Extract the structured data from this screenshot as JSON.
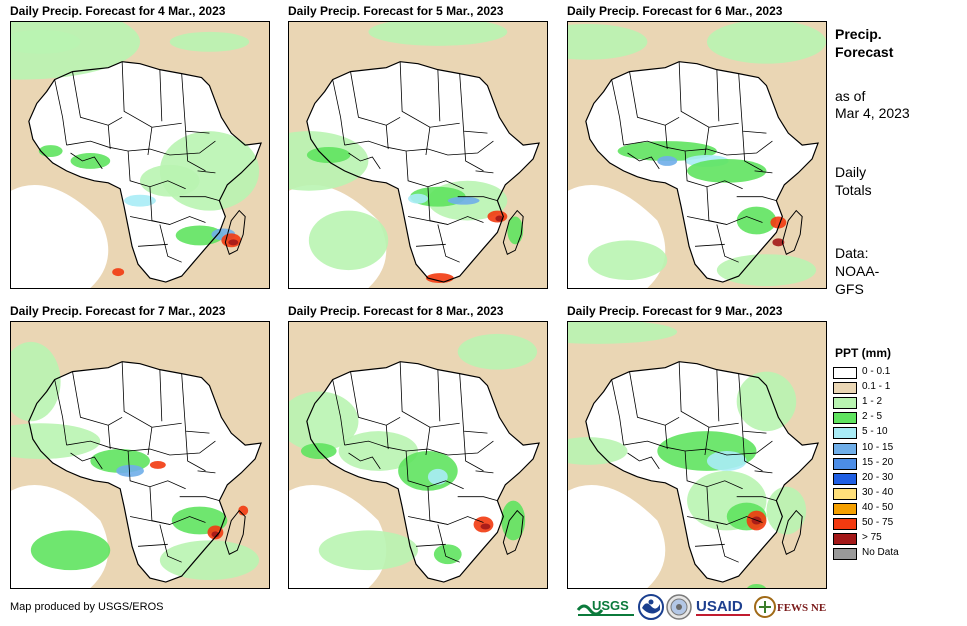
{
  "panels": [
    {
      "title": "Daily Precip. Forecast for 4 Mar., 2023"
    },
    {
      "title": "Daily Precip. Forecast for 5 Mar., 2023"
    },
    {
      "title": "Daily Precip. Forecast for 6 Mar., 2023"
    },
    {
      "title": "Daily Precip. Forecast for 7 Mar., 2023"
    },
    {
      "title": "Daily Precip. Forecast for 8 Mar., 2023"
    },
    {
      "title": "Daily Precip. Forecast for 9 Mar., 2023"
    }
  ],
  "side": {
    "heading_line1": "Precip.",
    "heading_line2": "Forecast",
    "asof_line1": "as of",
    "asof_line2": "Mar 4, 2023",
    "totals_line1": "Daily",
    "totals_line2": "Totals",
    "data_line1": "Data:",
    "data_line2": "NOAA-",
    "data_line3": "GFS"
  },
  "legend": {
    "title": "PPT (mm)",
    "items": [
      {
        "label": "0 - 0.1",
        "color": "#ffffff"
      },
      {
        "label": "0.1 - 1",
        "color": "#ead6b4"
      },
      {
        "label": "1 - 2",
        "color": "#b9f4b1"
      },
      {
        "label": "2 - 5",
        "color": "#5fe35f"
      },
      {
        "label": "5 - 10",
        "color": "#a9ecf6"
      },
      {
        "label": "10 - 15",
        "color": "#6faee9"
      },
      {
        "label": "15 - 20",
        "color": "#4c8de6"
      },
      {
        "label": "20 - 30",
        "color": "#1f5fe3"
      },
      {
        "label": "30 - 40",
        "color": "#ffe07a"
      },
      {
        "label": "40 - 50",
        "color": "#f5a000"
      },
      {
        "label": "50 - 75",
        "color": "#f23a10"
      },
      {
        "label": "> 75",
        "color": "#a31818"
      },
      {
        "label": "No Data",
        "color": "#999999"
      }
    ]
  },
  "credit": "Map produced by USGS/EROS",
  "logos": {
    "usgs": "USGS",
    "usaid": "USAID",
    "fewsnet": "FEWS NET"
  }
}
